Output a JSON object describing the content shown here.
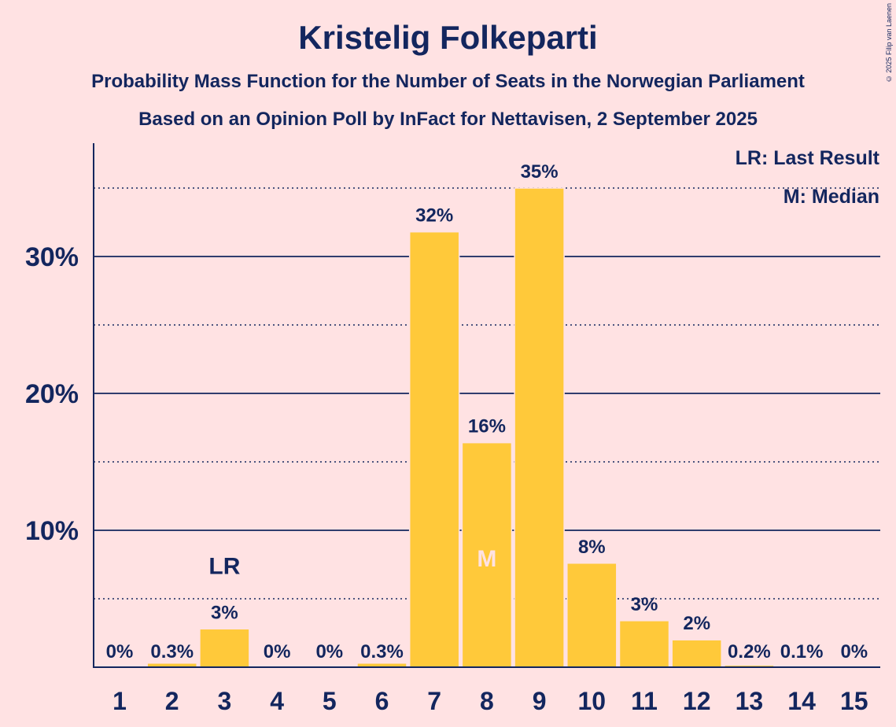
{
  "title": "Kristelig Folkeparti",
  "subtitle_1": "Probability Mass Function for the Number of Seats in the Norwegian Parliament",
  "subtitle_2": "Based on an Opinion Poll by InFact for Nettavisen, 2 September 2025",
  "copyright": "© 2025 Filip van Laenen",
  "legend": {
    "last_result": "LR: Last Result",
    "median": "M: Median"
  },
  "colors": {
    "background": "#ffe2e3",
    "bar": "#ffc93a",
    "text": "#13265e"
  },
  "chart_data": {
    "type": "bar",
    "title": "Kristelig Folkeparti",
    "categories": [
      "1",
      "2",
      "3",
      "4",
      "5",
      "6",
      "7",
      "8",
      "9",
      "10",
      "11",
      "12",
      "13",
      "14",
      "15"
    ],
    "values": [
      0,
      0.3,
      2.8,
      0,
      0,
      0.3,
      31.8,
      16.4,
      35.0,
      7.6,
      3.4,
      2.0,
      0.15,
      0.05,
      0
    ],
    "labels": [
      "0%",
      "0.3%",
      "3%",
      "0%",
      "0%",
      "0.3%",
      "32%",
      "16%",
      "35%",
      "8%",
      "3%",
      "2%",
      "0.2%",
      "0.1%",
      "0%"
    ],
    "y_ticks": [
      {
        "value": 10,
        "label": "10%"
      },
      {
        "value": 20,
        "label": "20%"
      },
      {
        "value": 30,
        "label": "30%"
      }
    ],
    "y_minor_gridlines": [
      5,
      15,
      25,
      35
    ],
    "ylim": [
      0,
      38
    ],
    "last_result": {
      "category": "3",
      "label": "LR"
    },
    "median": {
      "category": "8",
      "label": "M"
    },
    "legend_position": "top-right"
  }
}
